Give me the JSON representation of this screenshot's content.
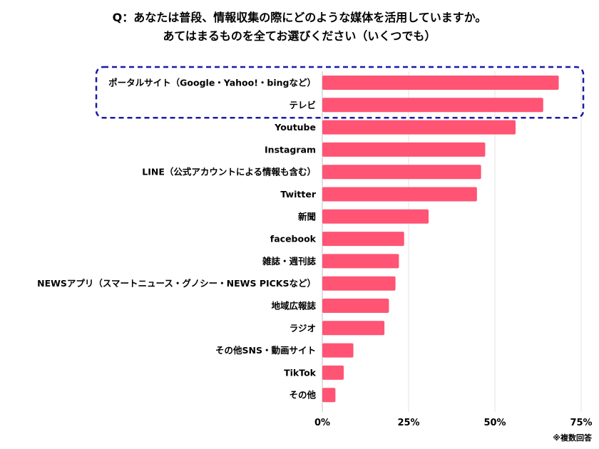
{
  "chart_data": {
    "type": "bar",
    "orientation": "horizontal",
    "title": [
      "Q：あなたは普段、情報収集の際にどのような媒体を活用していますか。",
      "あてはまるものを全てお選びください（いくつでも）"
    ],
    "categories": [
      "ポータルサイト（Google・Yahoo!・bingなど）",
      "テレビ",
      "Youtube",
      "Instagram",
      "LINE（公式アカウントによる情報も含む）",
      "Twitter",
      "新聞",
      "facebook",
      "雑誌・週刊誌",
      "NEWSアプリ（スマートニュース・グノシー・NEWS PICKSなど）",
      "地域広報誌",
      "ラジオ",
      "その他SNS・動画サイト",
      "TikTok",
      "その他"
    ],
    "values": [
      68.5,
      64.0,
      56.0,
      47.2,
      46.0,
      44.8,
      30.8,
      23.7,
      22.2,
      21.2,
      19.3,
      18.0,
      9.0,
      6.2,
      3.8
    ],
    "xlim": [
      0,
      75
    ],
    "x_ticks": [
      "0%",
      "25%",
      "50%",
      "75%"
    ],
    "x_tick_values": [
      0,
      25,
      50,
      75
    ],
    "grid": "vertical",
    "bar_color": "#FF5474",
    "highlight": {
      "categories": [
        0,
        1
      ],
      "style": "dashed-rounded-box",
      "color": "#1a1aa6"
    },
    "note": "※複数回答"
  }
}
